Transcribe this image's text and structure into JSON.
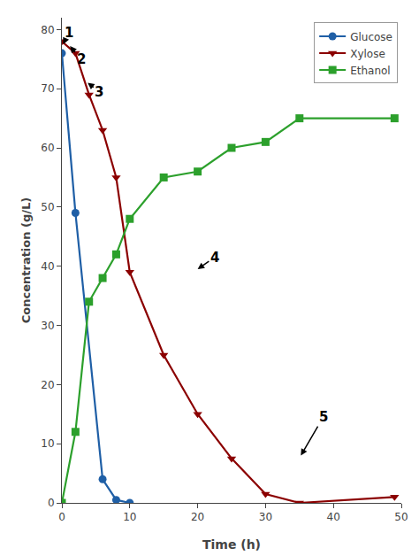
{
  "chart_data": {
    "type": "line",
    "x_label": "Time (h)",
    "y_label": "Concentration (g/L)",
    "series": [
      {
        "name": "Glucose",
        "color": "#1f5fa6",
        "marker": "circle",
        "x": [
          0,
          2,
          6,
          8,
          10
        ],
        "values": [
          76,
          49,
          4,
          0.5,
          0
        ]
      },
      {
        "name": "Xylose",
        "color": "#8b0000",
        "marker": "triangle-down",
        "x": [
          0,
          2,
          4,
          6,
          8,
          10,
          15,
          20,
          25,
          30,
          35,
          49
        ],
        "values": [
          78,
          76,
          69,
          63,
          55,
          39,
          25,
          15,
          7.5,
          1.5,
          0,
          1
        ]
      },
      {
        "name": "Ethanol",
        "color": "#2ca02c",
        "marker": "square",
        "x": [
          0,
          2,
          4,
          6,
          8,
          10,
          15,
          20,
          25,
          30,
          35,
          49
        ],
        "values": [
          0,
          12,
          34,
          38,
          42,
          48,
          55,
          56,
          60,
          61,
          65,
          65
        ]
      }
    ],
    "xlim": [
      0,
      50
    ],
    "ylim": [
      0,
      82
    ],
    "xticks": [
      0,
      10,
      20,
      30,
      40,
      50
    ],
    "yticks": [
      0,
      10,
      20,
      30,
      40,
      50,
      60,
      70,
      80
    ],
    "grid": false,
    "legend": "upper right",
    "annotations": [
      {
        "text": "1",
        "x": 0.2,
        "y": 77.5,
        "text_x": 1.0,
        "text_y": 79.5
      },
      {
        "text": "2",
        "x": 1.2,
        "y": 77.2,
        "text_x": 2.8,
        "text_y": 75.0
      },
      {
        "text": "3",
        "x": 3.8,
        "y": 71.0,
        "text_x": 5.5,
        "text_y": 69.5
      },
      {
        "text": "4",
        "x": 20.0,
        "y": 39.5,
        "text_x": 22.5,
        "text_y": 41.5
      },
      {
        "text": "5",
        "x": 35.2,
        "y": 8.0,
        "text_x": 38.5,
        "text_y": 14.5
      }
    ]
  }
}
